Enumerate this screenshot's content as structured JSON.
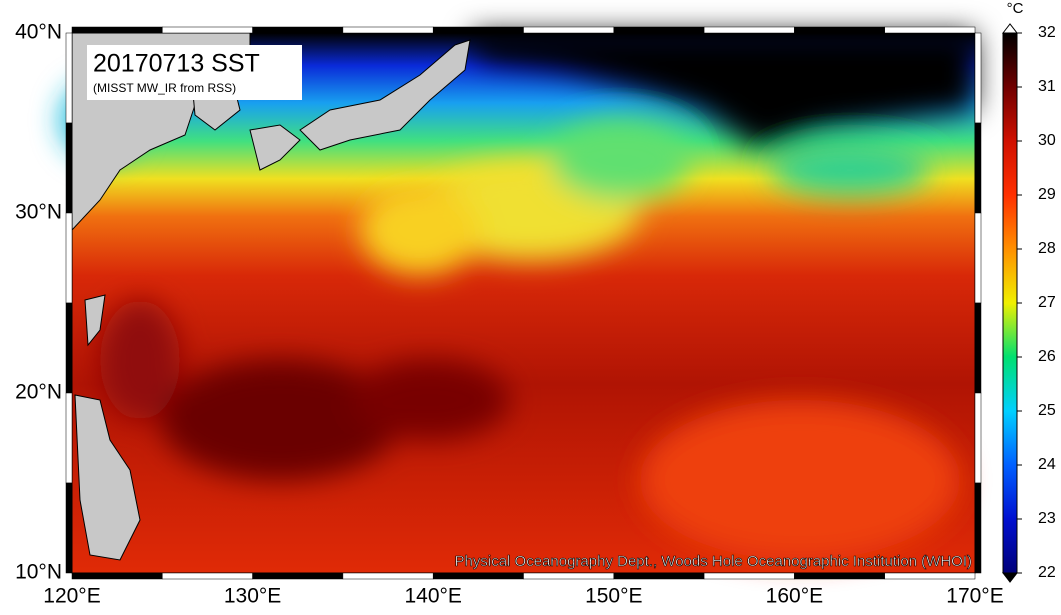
{
  "title": "20170713 SST",
  "subtitle": "(MISST MW_IR from RSS)",
  "credit": "Physical Oceanography Dept., Woods Hole Oceanographic Institution (WHOI)",
  "lat_labels": [
    "40°N",
    "30°N",
    "20°N",
    "10°N"
  ],
  "lon_labels": [
    "120°E",
    "130°E",
    "140°E",
    "150°E",
    "160°E",
    "170°E"
  ],
  "colorbar": {
    "unit": "°C",
    "range": [
      22,
      32
    ],
    "ticks": [
      22,
      23,
      24,
      25,
      26,
      27,
      28,
      29,
      30,
      31,
      32
    ]
  }
}
